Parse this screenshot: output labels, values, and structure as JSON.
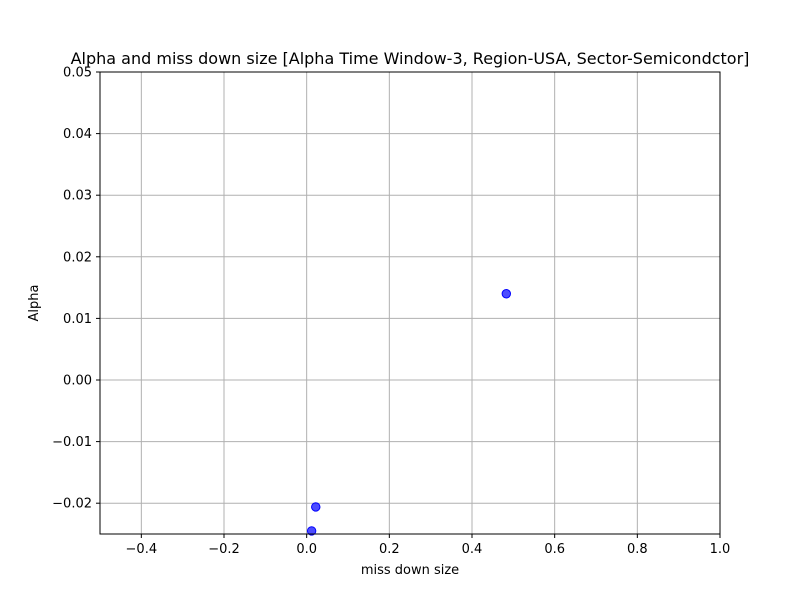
{
  "chart_data": {
    "type": "scatter",
    "title": "Alpha and miss down size [Alpha Time Window-3, Region-USA, Sector-Semicondctor]",
    "xlabel": "miss down size",
    "ylabel": "Alpha",
    "xlim": [
      -0.5,
      1.0
    ],
    "ylim": [
      -0.025,
      0.05
    ],
    "xticks": [
      -0.4,
      -0.2,
      0.0,
      0.2,
      0.4,
      0.6,
      0.8,
      1.0
    ],
    "xtick_labels": [
      "−0.4",
      "−0.2",
      "0.0",
      "0.2",
      "0.4",
      "0.6",
      "0.8",
      "1.0"
    ],
    "yticks": [
      -0.02,
      -0.01,
      0.0,
      0.01,
      0.02,
      0.03,
      0.04,
      0.05
    ],
    "ytick_labels": [
      "−0.02",
      "−0.01",
      "0.00",
      "0.01",
      "0.02",
      "0.03",
      "0.04",
      "0.05"
    ],
    "grid": true,
    "marker_color": "#0000ff",
    "points": [
      {
        "x": 0.483,
        "y": 0.014
      },
      {
        "x": 0.022,
        "y": -0.0206
      },
      {
        "x": 0.012,
        "y": -0.0245
      }
    ]
  }
}
